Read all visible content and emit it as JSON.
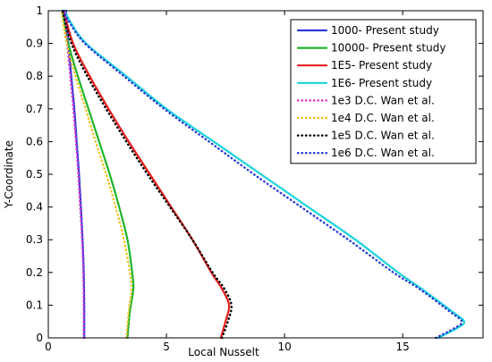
{
  "chart_data": {
    "type": "line",
    "xlabel": "Local Nusselt",
    "ylabel": "Y-Coordinate",
    "xlim": [
      0,
      18.4
    ],
    "ylim": [
      0,
      1
    ],
    "xticks": [
      0,
      5,
      10,
      15
    ],
    "yticks": [
      0,
      0.1,
      0.2,
      0.3,
      0.4,
      0.5,
      0.6,
      0.7,
      0.8,
      0.9,
      1
    ],
    "grid": false,
    "legend_position": "top-right",
    "series": [
      {
        "name": "1000- Present study",
        "color": "#2a3bd6",
        "dash": "solid",
        "points": [
          [
            1.52,
            0
          ],
          [
            1.52,
            0.1
          ],
          [
            1.5,
            0.2
          ],
          [
            1.45,
            0.3
          ],
          [
            1.38,
            0.4
          ],
          [
            1.3,
            0.5
          ],
          [
            1.2,
            0.6
          ],
          [
            1.1,
            0.7
          ],
          [
            0.97,
            0.8
          ],
          [
            0.85,
            0.9
          ],
          [
            0.75,
            1
          ]
        ]
      },
      {
        "name": "10000- Present study",
        "color": "#1db52c",
        "dash": "solid",
        "points": [
          [
            3.35,
            0
          ],
          [
            3.45,
            0.08
          ],
          [
            3.6,
            0.15
          ],
          [
            3.55,
            0.2
          ],
          [
            3.35,
            0.3
          ],
          [
            3.0,
            0.4
          ],
          [
            2.6,
            0.5
          ],
          [
            2.15,
            0.6
          ],
          [
            1.7,
            0.7
          ],
          [
            1.25,
            0.8
          ],
          [
            0.85,
            0.9
          ],
          [
            0.6,
            1
          ]
        ]
      },
      {
        "name": "1E5- Present study",
        "color": "#e41e1e",
        "dash": "solid",
        "points": [
          [
            7.3,
            0
          ],
          [
            7.5,
            0.05
          ],
          [
            7.65,
            0.1
          ],
          [
            7.35,
            0.15
          ],
          [
            6.9,
            0.2
          ],
          [
            6.1,
            0.3
          ],
          [
            5.2,
            0.4
          ],
          [
            4.3,
            0.5
          ],
          [
            3.4,
            0.6
          ],
          [
            2.55,
            0.7
          ],
          [
            1.75,
            0.8
          ],
          [
            1.05,
            0.9
          ],
          [
            0.65,
            1
          ]
        ]
      },
      {
        "name": "1E6- Present study",
        "color": "#1ad3dd",
        "dash": "solid",
        "points": [
          [
            16.5,
            0
          ],
          [
            17.3,
            0.03
          ],
          [
            17.6,
            0.05
          ],
          [
            17.1,
            0.08
          ],
          [
            15.8,
            0.15
          ],
          [
            14.8,
            0.2
          ],
          [
            13.0,
            0.3
          ],
          [
            11.0,
            0.4
          ],
          [
            9.0,
            0.5
          ],
          [
            7.0,
            0.6
          ],
          [
            5.0,
            0.7
          ],
          [
            3.3,
            0.8
          ],
          [
            1.6,
            0.9
          ],
          [
            0.9,
            0.97
          ],
          [
            0.7,
            1
          ]
        ]
      },
      {
        "name": "1e3 D.C. Wan et al.",
        "color": "#d633c9",
        "dash": "dotted",
        "points": [
          [
            1.5,
            0
          ],
          [
            1.5,
            0.1
          ],
          [
            1.48,
            0.2
          ],
          [
            1.43,
            0.3
          ],
          [
            1.35,
            0.4
          ],
          [
            1.27,
            0.5
          ],
          [
            1.17,
            0.6
          ],
          [
            1.06,
            0.7
          ],
          [
            0.93,
            0.8
          ],
          [
            0.8,
            0.9
          ],
          [
            0.7,
            1
          ]
        ]
      },
      {
        "name": "1e4 D.C. Wan et al.",
        "color": "#f3c11a",
        "dash": "dotted",
        "points": [
          [
            3.3,
            0
          ],
          [
            3.4,
            0.08
          ],
          [
            3.52,
            0.15
          ],
          [
            3.45,
            0.2
          ],
          [
            3.2,
            0.3
          ],
          [
            2.85,
            0.4
          ],
          [
            2.45,
            0.5
          ],
          [
            2.0,
            0.6
          ],
          [
            1.58,
            0.7
          ],
          [
            1.15,
            0.8
          ],
          [
            0.78,
            0.9
          ],
          [
            0.55,
            1
          ]
        ]
      },
      {
        "name": "1e5 D.C. Wan et al.",
        "color": "#000000",
        "dash": "dotted",
        "points": [
          [
            7.35,
            0
          ],
          [
            7.6,
            0.05
          ],
          [
            7.75,
            0.1
          ],
          [
            7.45,
            0.15
          ],
          [
            6.95,
            0.2
          ],
          [
            6.1,
            0.3
          ],
          [
            5.15,
            0.4
          ],
          [
            4.2,
            0.5
          ],
          [
            3.3,
            0.6
          ],
          [
            2.45,
            0.7
          ],
          [
            1.65,
            0.8
          ],
          [
            0.98,
            0.9
          ],
          [
            0.6,
            1
          ]
        ]
      },
      {
        "name": "1e6 D.C. Wan et al.",
        "color": "#2a3bd6",
        "dash": "dotted",
        "points": [
          [
            16.4,
            0
          ],
          [
            17.2,
            0.03
          ],
          [
            17.5,
            0.05
          ],
          [
            17.0,
            0.08
          ],
          [
            15.7,
            0.15
          ],
          [
            14.6,
            0.2
          ],
          [
            12.7,
            0.3
          ],
          [
            10.7,
            0.4
          ],
          [
            8.7,
            0.5
          ],
          [
            6.8,
            0.6
          ],
          [
            4.9,
            0.7
          ],
          [
            3.2,
            0.8
          ],
          [
            1.55,
            0.9
          ],
          [
            0.85,
            0.97
          ],
          [
            0.65,
            1
          ]
        ]
      }
    ]
  }
}
